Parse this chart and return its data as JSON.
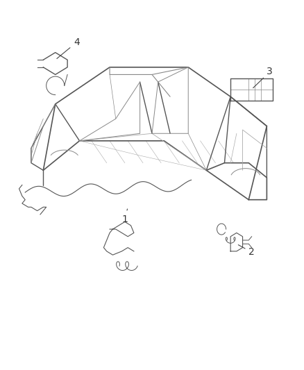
{
  "background_color": "#ffffff",
  "figure_width": 4.38,
  "figure_height": 5.33,
  "dpi": 100,
  "line_color": "#555555",
  "light_line_color": "#888888",
  "very_light_color": "#aaaaaa",
  "label_color": "#333333",
  "label_fontsize": 10
}
